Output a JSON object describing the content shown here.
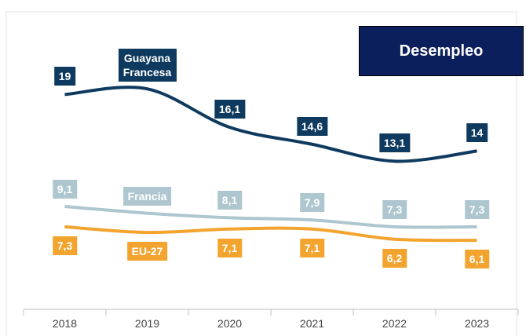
{
  "chart_data": {
    "type": "line",
    "title": "Desempleo",
    "categories": [
      "2018",
      "2019",
      "2020",
      "2021",
      "2022",
      "2023"
    ],
    "series": [
      {
        "name": "Guayana Francesa",
        "color": "#0f3a5f",
        "values": [
          19,
          19.5,
          16.1,
          14.6,
          13.1,
          14
        ],
        "value_labels": [
          "19",
          null,
          "16,1",
          "14,6",
          "13,1",
          "14"
        ]
      },
      {
        "name": "Francia",
        "color": "#aec6cf",
        "values": [
          9.1,
          8.5,
          8.1,
          7.9,
          7.3,
          7.3
        ],
        "value_labels": [
          "9,1",
          null,
          "8,1",
          "7,9",
          "7,3",
          "7,3"
        ]
      },
      {
        "name": "EU-27",
        "color": "#f2a42e",
        "values": [
          7.3,
          6.8,
          7.1,
          7.1,
          6.2,
          6.1
        ],
        "value_labels": [
          "7,3",
          null,
          "7,1",
          "7,1",
          "6,2",
          "6,1"
        ]
      }
    ]
  }
}
